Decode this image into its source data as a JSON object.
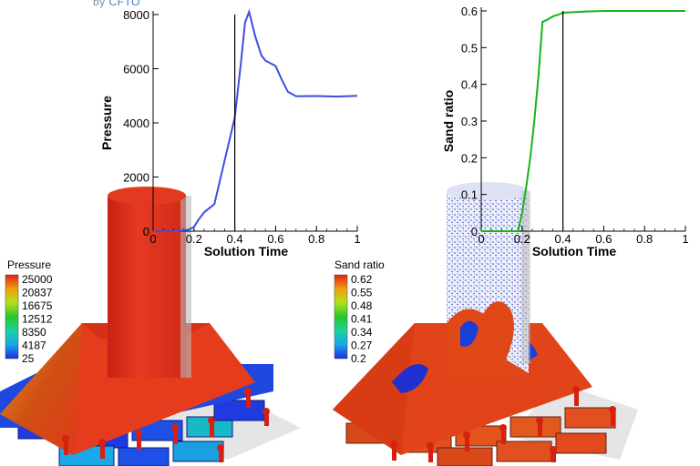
{
  "logo": {
    "prefix": "by ",
    "brand": "CFTO"
  },
  "colors": {
    "pressure_line": "#3b4fe0",
    "sand_line": "#18b418",
    "cursor_line": "#000000"
  },
  "chart_data": [
    {
      "type": "line",
      "title": "",
      "xlabel": "Solution Time",
      "ylabel": "Pressure",
      "xlim": [
        0,
        1
      ],
      "ylim": [
        0,
        8000
      ],
      "xticks": [
        "0",
        "0.2",
        "0.4",
        "0.6",
        "0.8",
        "1"
      ],
      "yticks": [
        "0",
        "2000",
        "4000",
        "6000",
        "8000"
      ],
      "cursor_x": 0.4,
      "series": [
        {
          "x": [
            0,
            0.1,
            0.17,
            0.2,
            0.22,
            0.25,
            0.3,
            0.35,
            0.4,
            0.43,
            0.45,
            0.47,
            0.5,
            0.53,
            0.55,
            0.6,
            0.63,
            0.66,
            0.7,
            0.8,
            0.9,
            1.0
          ],
          "y": [
            0,
            0,
            50,
            150,
            400,
            700,
            1000,
            2600,
            4200,
            6200,
            7700,
            8100,
            7200,
            6500,
            6300,
            6100,
            5600,
            5150,
            4980,
            4990,
            4970,
            5000
          ]
        }
      ],
      "legend": {
        "title": "Pressure",
        "values": [
          "25000",
          "20837",
          "16675",
          "12512",
          "8350",
          "4187",
          "25"
        ]
      }
    },
    {
      "type": "line",
      "title": "",
      "xlabel": "Solution Time",
      "ylabel": "Sand ratio",
      "xlim": [
        0,
        1
      ],
      "ylim": [
        0,
        0.6
      ],
      "xticks": [
        "0",
        "0.2",
        "0.4",
        "0.6",
        "0.8",
        "1"
      ],
      "yticks": [
        "0",
        "0.1",
        "0.2",
        "0.3",
        "0.4",
        "0.5",
        "0.6"
      ],
      "cursor_x": 0.4,
      "series": [
        {
          "x": [
            0,
            0.1,
            0.18,
            0.2,
            0.22,
            0.24,
            0.26,
            0.28,
            0.3,
            0.32,
            0.35,
            0.38,
            0.4,
            0.5,
            0.6,
            0.7,
            0.8,
            0.9,
            1.0
          ],
          "y": [
            0,
            0,
            0,
            0.05,
            0.12,
            0.2,
            0.3,
            0.42,
            0.57,
            0.575,
            0.585,
            0.59,
            0.595,
            0.598,
            0.6,
            0.6,
            0.6,
            0.6,
            0.6
          ]
        }
      ],
      "legend": {
        "title": "Sand ratio",
        "values": [
          "0.62",
          "0.55",
          "0.48",
          "0.41",
          "0.34",
          "0.27",
          "0.2"
        ]
      }
    }
  ]
}
